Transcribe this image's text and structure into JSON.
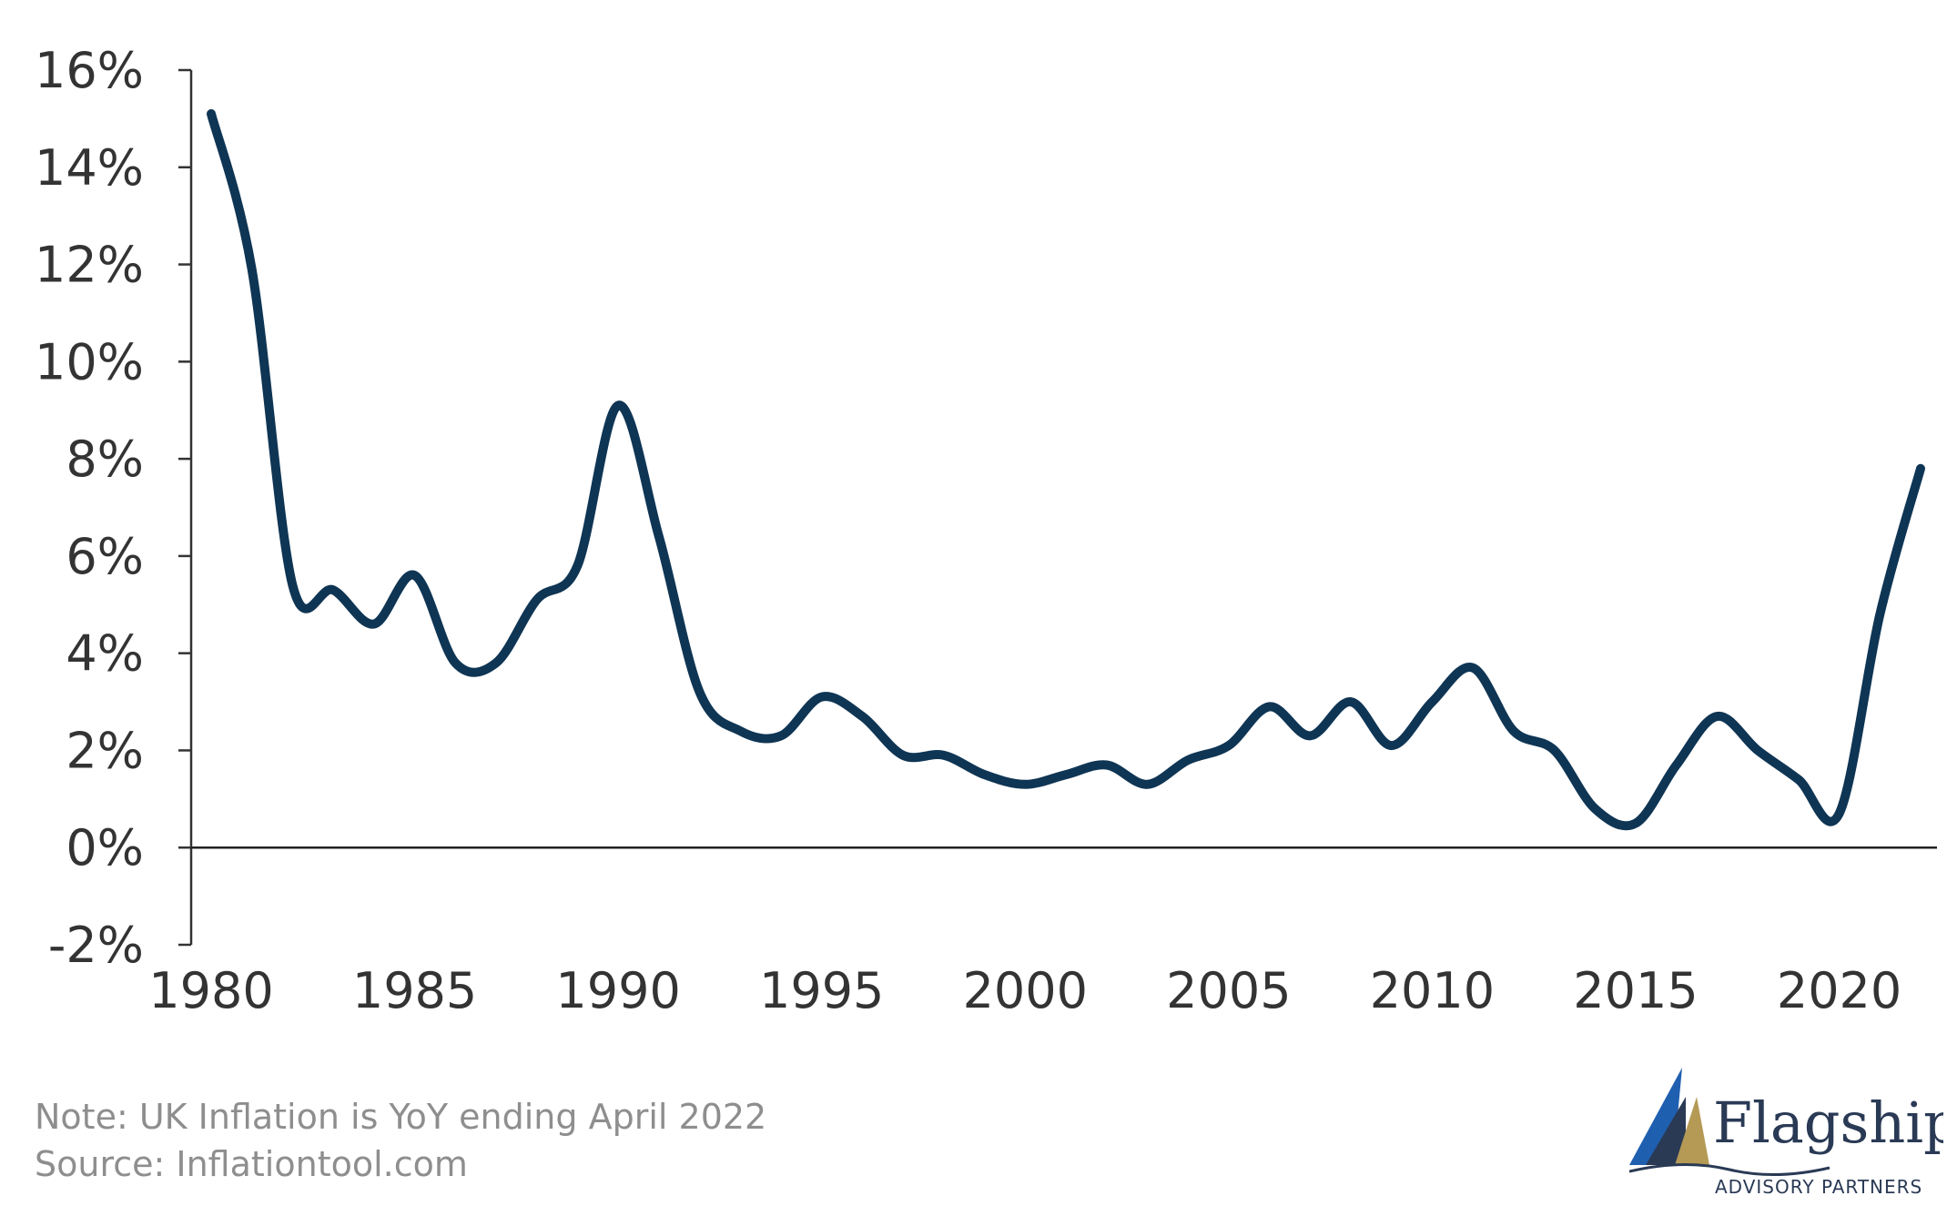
{
  "chart_data": {
    "type": "line",
    "title": "",
    "xlabel": "",
    "ylabel": "",
    "xlim": [
      1980,
      2022
    ],
    "ylim": [
      -2,
      16
    ],
    "x_ticks": [
      1980,
      1985,
      1990,
      1995,
      2000,
      2005,
      2010,
      2015,
      2020
    ],
    "x_tick_labels": [
      "1980",
      "1985",
      "1990",
      "1995",
      "2000",
      "2005",
      "2010",
      "2015",
      "2020"
    ],
    "y_ticks": [
      -2,
      0,
      2,
      4,
      6,
      8,
      10,
      12,
      14,
      16
    ],
    "y_tick_labels": [
      "-2%",
      "0%",
      "2%",
      "4%",
      "6%",
      "8%",
      "10%",
      "12%",
      "14%",
      "16%"
    ],
    "grid": false,
    "series": [
      {
        "color": "#0f3554",
        "x": [
          1980,
          1981,
          1982,
          1983,
          1984,
          1985,
          1986,
          1987,
          1988,
          1989,
          1990,
          1991,
          1992,
          1993,
          1994,
          1995,
          1996,
          1997,
          1998,
          1999,
          2000,
          2001,
          2002,
          2003,
          2004,
          2005,
          2006,
          2007,
          2008,
          2009,
          2010,
          2011,
          2012,
          2013,
          2014,
          2015,
          2016,
          2017,
          2018,
          2019,
          2020,
          2021,
          2022
        ],
        "y": [
          15.1,
          11.9,
          5.4,
          5.3,
          4.6,
          5.6,
          3.8,
          3.8,
          5.1,
          5.8,
          9.1,
          6.4,
          3.2,
          2.4,
          2.3,
          3.1,
          2.7,
          1.9,
          1.9,
          1.5,
          1.3,
          1.5,
          1.7,
          1.3,
          1.8,
          2.1,
          2.9,
          2.3,
          3.0,
          2.1,
          3.0,
          3.7,
          2.4,
          2.0,
          0.8,
          0.5,
          1.7,
          2.7,
          2.0,
          1.4,
          0.7,
          4.8,
          7.8
        ]
      }
    ]
  },
  "footer": {
    "note": "Note: UK Inflation is YoY ending April 2022",
    "source": "Source: Inflationtool.com"
  },
  "logo": {
    "name": "Flagship",
    "subtitle": "ADVISORY PARTNERS",
    "colors": {
      "navy": "#2a3a55",
      "blue": "#1f5fb0",
      "gold": "#b49a55"
    }
  }
}
